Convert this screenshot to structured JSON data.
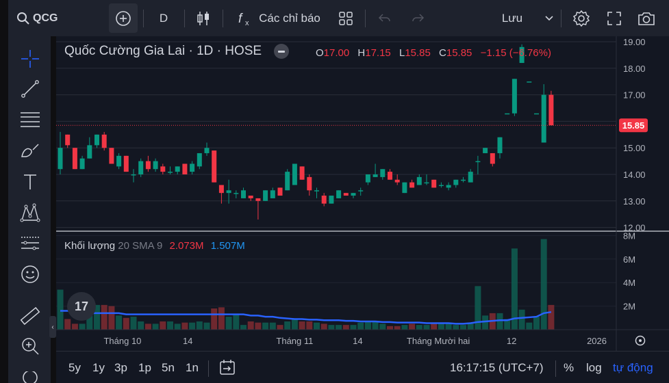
{
  "toolbar": {
    "symbol": "QCG",
    "interval": "D",
    "indicators_label": "Các chỉ báo",
    "save_label": "Lưu"
  },
  "legend": {
    "title": "Quốc Cường Gia Lai · 1D · HOSE",
    "o_label": "O",
    "o_value": "17.00",
    "h_label": "H",
    "h_value": "17.15",
    "l_label": "L",
    "l_value": "15.85",
    "c_label": "C",
    "c_value": "15.85",
    "change": "−1.15 (−6.76%)"
  },
  "volume_legend": {
    "title": "Khối lượng",
    "params": "20 SMA 9",
    "volume": "2.073M",
    "sma": "1.507M"
  },
  "price_axis": [
    "19.00",
    "18.00",
    "17.00",
    "16.00",
    "15.00",
    "14.00",
    "13.00",
    "12.00"
  ],
  "last_price": "15.85",
  "volume_axis": [
    "8M",
    "6M",
    "4M",
    "2M"
  ],
  "time_axis": [
    "Tháng 10",
    "14",
    "Tháng 11",
    "14",
    "Tháng Mười hai",
    "12",
    "2026"
  ],
  "bottom": {
    "ranges": [
      "5y",
      "1y",
      "3p",
      "1p",
      "5n",
      "1n"
    ],
    "time": "16:17:15 (UTC+7)",
    "percent": "%",
    "log": "log",
    "auto": "tự động"
  },
  "logo_text": "17",
  "colors": {
    "up": "#089981",
    "down": "#f23645",
    "sma": "#2962ff",
    "bg": "#131722"
  },
  "chart_data": {
    "type": "candlestick",
    "title": "Quốc Cường Gia Lai · 1D · HOSE",
    "ylim": [
      12,
      19
    ],
    "volume_ylim": [
      0,
      8
    ],
    "candles": [
      {
        "o": 14.2,
        "h": 15.6,
        "l": 14.0,
        "c": 15.0
      },
      {
        "o": 15.5,
        "h": 15.5,
        "l": 15.0,
        "c": 15.1
      },
      {
        "o": 15.0,
        "h": 15.0,
        "l": 14.2,
        "c": 14.2
      },
      {
        "o": 14.2,
        "h": 14.7,
        "l": 14.2,
        "c": 14.6
      },
      {
        "o": 14.6,
        "h": 15.4,
        "l": 14.6,
        "c": 15.1
      },
      {
        "o": 15.1,
        "h": 15.5,
        "l": 15.0,
        "c": 15.5
      },
      {
        "o": 15.5,
        "h": 15.6,
        "l": 14.9,
        "c": 15.0
      },
      {
        "o": 15.0,
        "h": 15.0,
        "l": 14.4,
        "c": 14.4
      },
      {
        "o": 14.3,
        "h": 14.8,
        "l": 14.2,
        "c": 14.7
      },
      {
        "o": 14.7,
        "h": 14.7,
        "l": 14.1,
        "c": 14.1
      },
      {
        "o": 14.0,
        "h": 14.2,
        "l": 13.7,
        "c": 14.0
      },
      {
        "o": 14.0,
        "h": 14.6,
        "l": 13.9,
        "c": 14.5
      },
      {
        "o": 14.5,
        "h": 14.7,
        "l": 14.1,
        "c": 14.2
      },
      {
        "o": 14.2,
        "h": 14.6,
        "l": 14.1,
        "c": 14.5
      },
      {
        "o": 14.3,
        "h": 14.4,
        "l": 14.0,
        "c": 14.1
      },
      {
        "o": 14.1,
        "h": 14.3,
        "l": 14.0,
        "c": 14.1
      },
      {
        "o": 14.1,
        "h": 14.3,
        "l": 14.0,
        "c": 14.3
      },
      {
        "o": 14.4,
        "h": 14.4,
        "l": 14.0,
        "c": 14.0
      },
      {
        "o": 14.1,
        "h": 14.5,
        "l": 14.0,
        "c": 14.4
      },
      {
        "o": 14.3,
        "h": 14.8,
        "l": 14.2,
        "c": 14.8
      },
      {
        "o": 14.8,
        "h": 15.2,
        "l": 14.7,
        "c": 15.0
      },
      {
        "o": 14.9,
        "h": 14.9,
        "l": 13.7,
        "c": 13.7
      },
      {
        "o": 13.6,
        "h": 13.6,
        "l": 12.9,
        "c": 13.3
      },
      {
        "o": 13.3,
        "h": 13.8,
        "l": 12.9,
        "c": 13.4
      },
      {
        "o": 13.3,
        "h": 13.4,
        "l": 13.1,
        "c": 13.3
      },
      {
        "o": 13.1,
        "h": 13.5,
        "l": 13.1,
        "c": 13.4
      },
      {
        "o": 13.2,
        "h": 13.2,
        "l": 13.0,
        "c": 13.1
      },
      {
        "o": 13.1,
        "h": 13.1,
        "l": 12.3,
        "c": 13.0
      },
      {
        "o": 13.0,
        "h": 13.4,
        "l": 13.0,
        "c": 13.4
      },
      {
        "o": 13.1,
        "h": 13.5,
        "l": 13.1,
        "c": 13.4
      },
      {
        "o": 13.5,
        "h": 13.5,
        "l": 13.2,
        "c": 13.2
      },
      {
        "o": 13.4,
        "h": 14.2,
        "l": 13.4,
        "c": 14.1
      },
      {
        "o": 13.6,
        "h": 14.4,
        "l": 13.6,
        "c": 14.4
      },
      {
        "o": 14.3,
        "h": 14.3,
        "l": 13.8,
        "c": 13.8
      },
      {
        "o": 13.9,
        "h": 14.0,
        "l": 13.2,
        "c": 13.4
      },
      {
        "o": 13.4,
        "h": 13.5,
        "l": 13.1,
        "c": 13.4
      },
      {
        "o": 13.2,
        "h": 13.3,
        "l": 12.8,
        "c": 12.9
      },
      {
        "o": 12.9,
        "h": 13.2,
        "l": 12.9,
        "c": 13.2
      },
      {
        "o": 13.1,
        "h": 13.4,
        "l": 13.1,
        "c": 13.4
      },
      {
        "o": 13.3,
        "h": 13.3,
        "l": 13.2,
        "c": 13.2
      },
      {
        "o": 13.2,
        "h": 13.3,
        "l": 13.1,
        "c": 13.3
      },
      {
        "o": 13.4,
        "h": 13.5,
        "l": 13.2,
        "c": 13.4
      },
      {
        "o": 13.7,
        "h": 14.0,
        "l": 13.6,
        "c": 14.0
      },
      {
        "o": 13.9,
        "h": 14.4,
        "l": 13.9,
        "c": 14.0
      },
      {
        "o": 13.9,
        "h": 14.2,
        "l": 13.8,
        "c": 14.2
      },
      {
        "o": 14.1,
        "h": 14.2,
        "l": 13.8,
        "c": 13.8
      },
      {
        "o": 13.8,
        "h": 14.0,
        "l": 13.6,
        "c": 13.7
      },
      {
        "o": 13.3,
        "h": 13.7,
        "l": 13.3,
        "c": 13.7
      },
      {
        "o": 13.7,
        "h": 13.8,
        "l": 13.5,
        "c": 13.5
      },
      {
        "o": 13.6,
        "h": 14.0,
        "l": 13.6,
        "c": 13.9
      },
      {
        "o": 13.7,
        "h": 14.0,
        "l": 13.6,
        "c": 13.7
      },
      {
        "o": 13.8,
        "h": 13.8,
        "l": 13.5,
        "c": 13.5
      },
      {
        "o": 13.6,
        "h": 13.7,
        "l": 13.5,
        "c": 13.6
      },
      {
        "o": 13.5,
        "h": 13.7,
        "l": 13.4,
        "c": 13.6
      },
      {
        "o": 13.6,
        "h": 13.8,
        "l": 13.5,
        "c": 13.8
      },
      {
        "o": 13.8,
        "h": 13.9,
        "l": 13.7,
        "c": 13.8
      },
      {
        "o": 13.7,
        "h": 14.2,
        "l": 13.7,
        "c": 14.1
      },
      {
        "o": 14.5,
        "h": 14.7,
        "l": 14.0,
        "c": 14.5
      },
      {
        "o": 14.8,
        "h": 15.0,
        "l": 14.8,
        "c": 15.0
      },
      {
        "o": 14.8,
        "h": 14.8,
        "l": 14.3,
        "c": 14.4
      },
      {
        "o": 14.8,
        "h": 15.4,
        "l": 14.6,
        "c": 15.4
      },
      {
        "o": 16.3,
        "h": 16.3,
        "l": 16.3,
        "c": 16.3
      },
      {
        "o": 16.3,
        "h": 17.6,
        "l": 16.2,
        "c": 17.6
      },
      {
        "o": 18.2,
        "h": 18.9,
        "l": 18.2,
        "c": 18.8
      },
      {
        "o": 17.5,
        "h": 17.5,
        "l": 17.5,
        "c": 17.5
      },
      {
        "o": 16.3,
        "h": 16.3,
        "l": 16.3,
        "c": 16.3
      },
      {
        "o": 15.2,
        "h": 17.4,
        "l": 15.2,
        "c": 17.0
      },
      {
        "o": 17.0,
        "h": 17.15,
        "l": 15.85,
        "c": 15.85
      }
    ],
    "volume": [
      3.4,
      0.9,
      0.5,
      0.5,
      1.2,
      2.1,
      2.1,
      2.0,
      1.2,
      1.0,
      1.1,
      0.7,
      0.5,
      0.5,
      0.7,
      0.7,
      0.5,
      0.6,
      0.6,
      0.7,
      0.6,
      1.8,
      1.9,
      1.1,
      1.3,
      0.4,
      0.7,
      0.6,
      0.6,
      0.6,
      0.4,
      0.7,
      0.9,
      0.7,
      0.7,
      0.6,
      0.5,
      0.4,
      0.4,
      0.4,
      0.4,
      0.6,
      0.7,
      0.7,
      0.5,
      0.3,
      0.3,
      0.4,
      0.5,
      0.4,
      0.4,
      0.5,
      0.5,
      0.6,
      0.4,
      0.4,
      0.6,
      3.7,
      1.2,
      1.4,
      1.4,
      0.9,
      6.9,
      1.7,
      0.6,
      1.1,
      7.7,
      2.1
    ],
    "sma": [
      1.6,
      1.6,
      1.5,
      1.4,
      1.4,
      1.4,
      1.4,
      1.4,
      1.4,
      1.3,
      1.3,
      1.3,
      1.3,
      1.3,
      1.3,
      1.3,
      1.3,
      1.3,
      1.3,
      1.3,
      1.3,
      1.3,
      1.3,
      1.3,
      1.3,
      1.3,
      1.2,
      1.2,
      1.1,
      1.1,
      1.0,
      0.95,
      0.9,
      0.9,
      0.85,
      0.85,
      0.8,
      0.8,
      0.8,
      0.75,
      0.75,
      0.7,
      0.7,
      0.7,
      0.65,
      0.65,
      0.6,
      0.6,
      0.6,
      0.6,
      0.55,
      0.55,
      0.55,
      0.55,
      0.5,
      0.5,
      0.55,
      0.65,
      0.7,
      0.75,
      0.8,
      0.8,
      0.95,
      1.0,
      1.05,
      1.1,
      1.4,
      1.5
    ]
  }
}
